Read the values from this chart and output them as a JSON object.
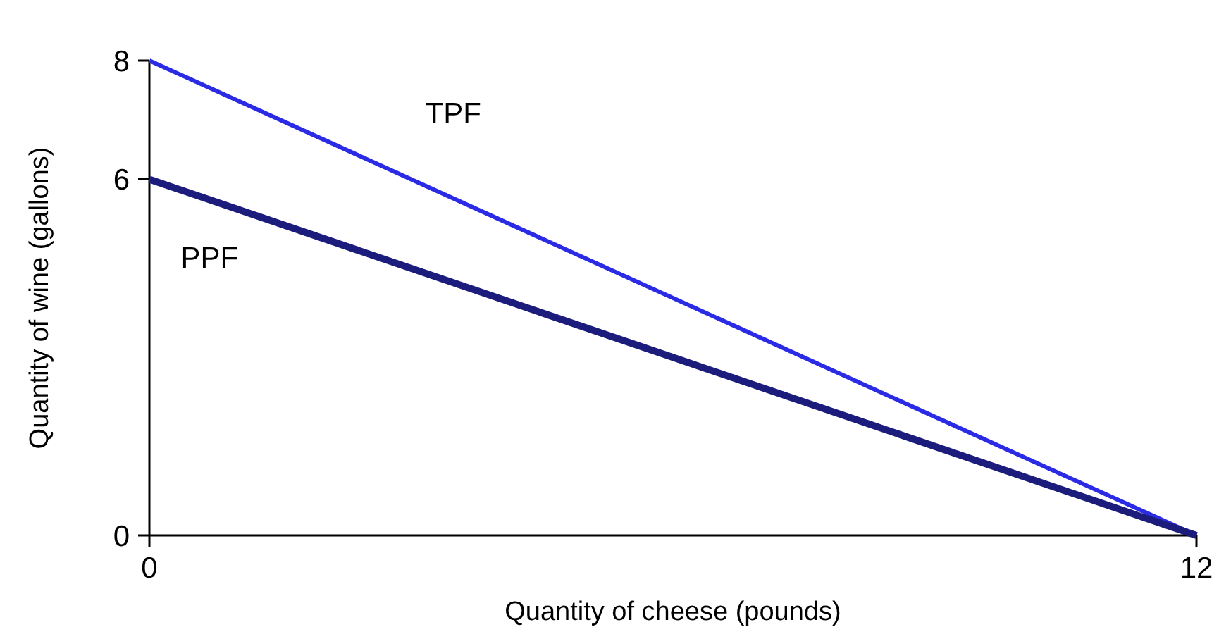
{
  "chart_data": {
    "type": "line",
    "xlabel": "Quantity of cheese (pounds)",
    "ylabel": "Quantity of wine (gallons)",
    "x": [
      0,
      12
    ],
    "xlim": [
      0,
      12
    ],
    "ylim": [
      0,
      8
    ],
    "xticks": [
      0,
      12
    ],
    "yticks": [
      0,
      6,
      8
    ],
    "grid": false,
    "legend": false,
    "marker": "none",
    "line_style": "solid",
    "series": [
      {
        "name": "TPF",
        "color": "#2b2be6",
        "values": [
          8,
          0
        ]
      },
      {
        "name": "PPF",
        "color": "#1c1c7c",
        "values": [
          6,
          0
        ]
      }
    ]
  }
}
